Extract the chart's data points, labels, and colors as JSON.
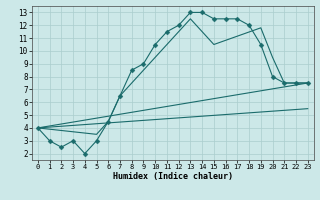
{
  "xlabel": "Humidex (Indice chaleur)",
  "background_color": "#cce8e8",
  "grid_color": "#aacece",
  "line_color": "#1a6b6b",
  "xlim": [
    -0.5,
    23.5
  ],
  "ylim": [
    1.5,
    13.5
  ],
  "xticks": [
    0,
    1,
    2,
    3,
    4,
    5,
    6,
    7,
    8,
    9,
    10,
    11,
    12,
    13,
    14,
    15,
    16,
    17,
    18,
    19,
    20,
    21,
    22,
    23
  ],
  "yticks": [
    2,
    3,
    4,
    5,
    6,
    7,
    8,
    9,
    10,
    11,
    12,
    13
  ],
  "lines": [
    {
      "x": [
        0,
        1,
        2,
        3,
        4,
        5,
        6,
        7,
        8,
        9,
        10,
        11,
        12,
        13,
        14,
        15,
        16,
        17,
        18,
        19,
        20,
        21,
        22,
        23
      ],
      "y": [
        4,
        3,
        2.5,
        3,
        2,
        3,
        4.5,
        6.5,
        8.5,
        9,
        10.5,
        11.5,
        12,
        13,
        13,
        12.5,
        12.5,
        12.5,
        12,
        10.5,
        8,
        7.5,
        7.5,
        7.5
      ],
      "marker": true,
      "markersize": 2.5
    },
    {
      "x": [
        0,
        5,
        6,
        7,
        10,
        13,
        15,
        19,
        20,
        21,
        22,
        23
      ],
      "y": [
        4,
        3.5,
        4.5,
        6.5,
        9.5,
        12.5,
        10.5,
        11.8,
        9.5,
        7.5,
        7.5,
        7.5
      ],
      "marker": false
    },
    {
      "x": [
        0,
        23
      ],
      "y": [
        4,
        7.5
      ],
      "marker": false
    },
    {
      "x": [
        0,
        23
      ],
      "y": [
        4,
        5.5
      ],
      "marker": false
    }
  ]
}
